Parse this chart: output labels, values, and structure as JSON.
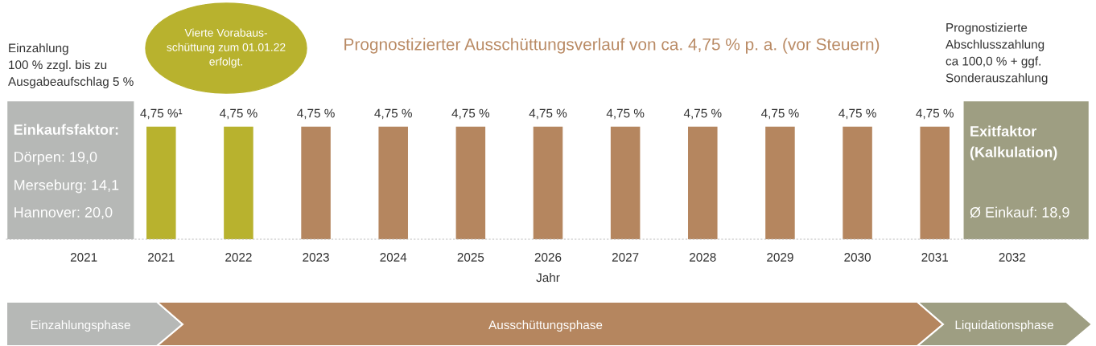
{
  "chart_data": {
    "type": "bar",
    "title": "Prognostizierter Ausschüttungsverlauf von ca. 4,75 % p. a. (vor Steuern)",
    "xlabel": "Jahr",
    "categories": [
      "2021",
      "2021",
      "2022",
      "2023",
      "2024",
      "2025",
      "2026",
      "2027",
      "2028",
      "2029",
      "2030",
      "2031",
      "2032"
    ],
    "values": [
      null,
      4.75,
      4.75,
      4.75,
      4.75,
      4.75,
      4.75,
      4.75,
      4.75,
      4.75,
      4.75,
      4.75,
      null
    ],
    "colors": [
      "#b6b8b6",
      "#b8b22e",
      "#b8b22e",
      "#b5865f",
      "#b5865f",
      "#b5865f",
      "#b5865f",
      "#b5865f",
      "#b5865f",
      "#b5865f",
      "#b5865f",
      "#b5865f",
      "#9e9e82"
    ],
    "value_labels": [
      null,
      "4,75 %¹",
      "4,75 %",
      "4,75 %",
      "4,75 %",
      "4,75 %",
      "4,75 %",
      "4,75 %",
      "4,75 %",
      "4,75 %",
      "4,75 %",
      "4,75 %",
      null
    ],
    "annotations": [
      "Einzahlung\n100 % zzgl. bis zu\nAusgabeaufschlag 5 %",
      "Vierte Vorabaus-\nschüttung zum 01.01.22\nerfolgt.",
      "Prognostizierte\nAbschlusszahlung\nca 100,0 % + ggf.\nSonderauszahlung",
      "Einkaufsfaktor:",
      "Dörpen: 19,0",
      "Merseburg: 14,1",
      "Hannover: 20,0",
      "Exitfaktor\n(Kalkulation)",
      "Ø Einkauf: 18,9",
      "Einzahlungsphase",
      "Ausschüttungsphase",
      "Liquidationsphase"
    ],
    "grid": false,
    "legend": false
  }
}
